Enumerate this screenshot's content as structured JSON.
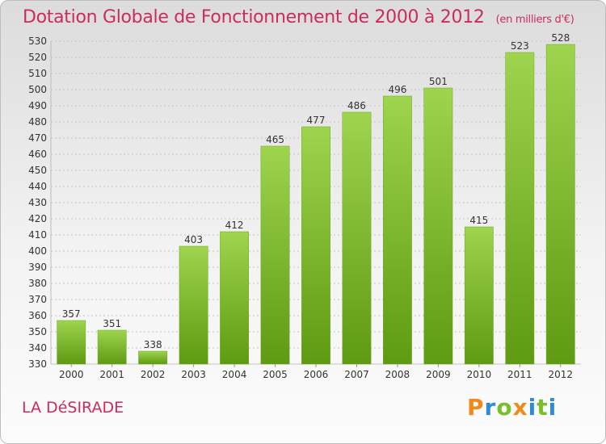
{
  "title": "Dotation Globale de Fonctionnement de 2000 à 2012",
  "unit": "(en milliers d'€)",
  "place": "LA DéSIRADE",
  "logo": {
    "letters": [
      "P",
      "r",
      "o",
      "x",
      "i",
      "t",
      "i"
    ],
    "colors": [
      "#f18a1c",
      "#2e8bd6",
      "#7abf2a",
      "#f18a1c",
      "#2e8bd6",
      "#7abf2a",
      "#2e8bd6"
    ]
  },
  "colors": {
    "bar_light": "#9ed44e",
    "bar_dark": "#5e9a12",
    "title": "#cc2c5b"
  },
  "chart_data": {
    "type": "bar",
    "categories": [
      "2000",
      "2001",
      "2002",
      "2003",
      "2004",
      "2005",
      "2006",
      "2007",
      "2008",
      "2009",
      "2010",
      "2011",
      "2012"
    ],
    "values": [
      357,
      351,
      338,
      403,
      412,
      465,
      477,
      486,
      496,
      501,
      415,
      523,
      528
    ],
    "title": "Dotation Globale de Fonctionnement de 2000 à 2012",
    "xlabel": "",
    "ylabel": "",
    "ylim": [
      330,
      530
    ],
    "yticks": [
      330,
      340,
      350,
      360,
      370,
      380,
      390,
      400,
      410,
      420,
      430,
      440,
      450,
      460,
      470,
      480,
      490,
      500,
      510,
      520,
      530
    ],
    "grid": true
  }
}
